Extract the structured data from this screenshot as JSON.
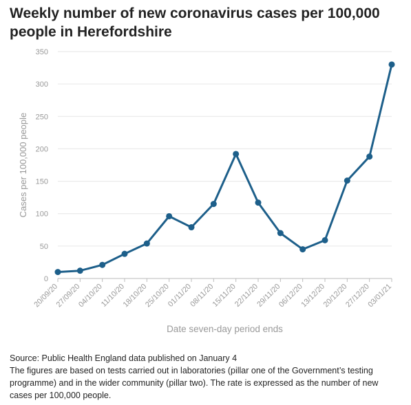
{
  "title": "Weekly number of new coronavirus cases per 100,000 people in Herefordshire",
  "footer": {
    "source": "Source: Public Health England data published on January 4",
    "note": "The figures are based on tests carried out in laboratories (pillar one of the Government’s testing programme) and in the wider community (pillar two). The rate is expressed as the number of new cases per 100,000 people."
  },
  "colors": {
    "line": "#1d5f8a",
    "grid": "#e6e6e6",
    "axis": "#bbbbbb",
    "label": "#999999"
  },
  "chart_data": {
    "type": "line",
    "xlabel": "Date seven-day period ends",
    "ylabel": "Cases per 100,000 people",
    "ylim": [
      0,
      350
    ],
    "yticks": [
      0,
      50,
      100,
      150,
      200,
      250,
      300,
      350
    ],
    "grid": true,
    "categories": [
      "20/09/20",
      "27/09/20",
      "04/10/20",
      "11/10/20",
      "18/10/20",
      "25/10/20",
      "01/11/20",
      "08/11/20",
      "15/11/20",
      "22/11/20",
      "29/11/20",
      "06/12/20",
      "13/12/20",
      "20/12/20",
      "27/12/20",
      "03/01/21"
    ],
    "values": [
      10,
      12,
      21,
      38,
      54,
      96,
      79,
      115,
      192,
      117,
      70,
      45,
      59,
      151,
      188,
      330
    ]
  }
}
